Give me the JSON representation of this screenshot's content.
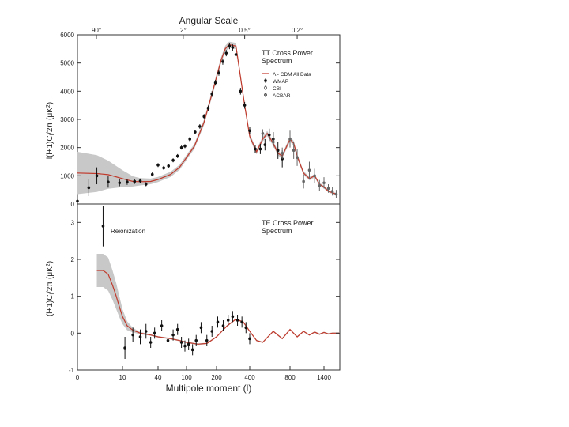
{
  "chart_data": [
    {
      "type": "line",
      "title": "TT Cross Power Spectrum",
      "title_lines": [
        "TT Cross Power",
        "Spectrum"
      ],
      "top_axis_title": "Angular Scale",
      "top_ticks": [
        "90°",
        "2°",
        "0.5°",
        "0.2°"
      ],
      "top_tick_l": [
        2,
        90,
        360,
        900
      ],
      "ylabel": "l(l+1)C_l/2π (μK²)",
      "ylim": [
        0,
        6000
      ],
      "yticks": [
        0,
        1000,
        2000,
        3000,
        4000,
        5000,
        6000
      ],
      "xlim_l": [
        2,
        1800
      ],
      "legend_position": "right, below title",
      "legend": [
        {
          "label": "Λ - CDM All Data",
          "marker": "line"
        },
        {
          "label": "WMAP",
          "marker": "filled-point"
        },
        {
          "label": "CBI",
          "marker": "open-point"
        },
        {
          "label": "ACBAR",
          "marker": "grey-point"
        }
      ],
      "model_band": {
        "l": [
          2,
          4,
          6,
          10,
          15,
          20,
          30,
          40,
          60,
          80,
          100,
          120,
          150,
          180,
          200,
          220,
          240,
          260,
          300,
          360,
          400,
          450,
          500,
          540,
          600,
          650,
          700,
          800,
          850,
          900,
          1000,
          1100,
          1200,
          1300,
          1400,
          1500,
          1700
        ],
        "value": [
          1100,
          1080,
          1040,
          900,
          800,
          790,
          800,
          870,
          1050,
          1300,
          1650,
          2050,
          2900,
          3900,
          4500,
          5100,
          5500,
          5650,
          5600,
          3500,
          2400,
          1850,
          2300,
          2500,
          2150,
          1800,
          1700,
          2300,
          2150,
          1700,
          1100,
          900,
          1000,
          700,
          600,
          450,
          350
        ],
        "band_halfwidth": [
          750,
          650,
          500,
          300,
          180,
          130,
          100,
          90,
          90,
          90,
          90,
          90,
          100,
          110,
          110,
          110,
          110,
          110,
          110,
          100,
          90,
          90,
          90,
          90,
          90,
          80,
          80,
          90,
          90,
          80,
          70,
          60,
          60,
          50,
          50,
          40,
          40
        ]
      },
      "series": [
        {
          "name": "WMAP",
          "l": [
            2,
            3,
            4,
            6,
            9,
            12,
            16,
            20,
            25,
            32,
            40,
            48,
            56,
            65,
            75,
            85,
            95,
            108,
            122,
            136,
            150,
            165,
            180,
            195,
            210,
            228,
            245,
            262,
            280,
            300,
            330,
            360,
            400,
            440,
            480,
            520,
            560,
            600,
            650,
            700
          ],
          "value": [
            100,
            580,
            1000,
            780,
            750,
            780,
            800,
            820,
            700,
            1050,
            1380,
            1280,
            1350,
            1550,
            1700,
            2000,
            2050,
            2300,
            2550,
            2750,
            3100,
            3400,
            3900,
            4300,
            4650,
            5050,
            5350,
            5600,
            5550,
            5300,
            4000,
            3500,
            2600,
            1950,
            1950,
            2100,
            2450,
            2300,
            1900,
            1600
          ],
          "err": [
            0,
            300,
            300,
            200,
            120,
            100,
            90,
            80,
            70,
            70,
            70,
            70,
            70,
            70,
            70,
            70,
            70,
            80,
            80,
            80,
            90,
            90,
            100,
            100,
            100,
            110,
            110,
            110,
            110,
            120,
            120,
            120,
            120,
            150,
            180,
            200,
            220,
            250,
            300,
            300
          ]
        },
        {
          "name": "CBI/ACBAR",
          "l": [
            500,
            600,
            700,
            800,
            850,
            900,
            1000,
            1100,
            1200,
            1300,
            1400,
            1500,
            1600,
            1700
          ],
          "value": [
            2500,
            2200,
            1800,
            2300,
            1900,
            1650,
            800,
            1200,
            1000,
            650,
            750,
            550,
            450,
            350
          ],
          "err": [
            150,
            200,
            200,
            300,
            300,
            300,
            250,
            300,
            250,
            200,
            200,
            150,
            150,
            150
          ]
        }
      ]
    },
    {
      "type": "line",
      "title": "TE Cross Power Spectrum",
      "title_lines": [
        "TE Cross Power",
        "Spectrum"
      ],
      "annotation": "Reionization",
      "ylabel": "(l+1)C_l/2π (μK²)",
      "xlabel": "Multipole moment (l)",
      "ylim": [
        -1,
        3.5
      ],
      "yticks": [
        -1,
        0,
        1,
        2,
        3
      ],
      "xticks": [
        "0",
        "10",
        "40",
        "100",
        "200",
        "400",
        "800",
        "1400"
      ],
      "xtick_l": [
        2,
        10,
        40,
        100,
        200,
        400,
        800,
        1400
      ],
      "xlim_l": [
        2,
        1800
      ],
      "model_band": {
        "l": [
          4,
          5,
          6,
          7,
          8,
          9,
          10,
          12,
          15,
          20,
          30,
          40,
          60,
          80,
          100,
          130,
          160,
          200,
          250,
          300,
          350,
          400,
          450,
          500,
          600,
          700,
          800,
          900,
          1000,
          1100,
          1200,
          1300,
          1400,
          1500,
          1600,
          1800
        ],
        "value": [
          1.7,
          1.7,
          1.6,
          1.3,
          1.0,
          0.7,
          0.45,
          0.2,
          0.08,
          0.0,
          -0.05,
          -0.1,
          -0.15,
          -0.2,
          -0.25,
          -0.3,
          -0.28,
          -0.1,
          0.2,
          0.38,
          0.3,
          0.05,
          -0.2,
          -0.25,
          0.05,
          -0.15,
          0.1,
          -0.1,
          0.05,
          -0.05,
          0.03,
          -0.03,
          0.02,
          -0.02,
          0.0,
          0.0
        ],
        "band_halfwidth": [
          0.45,
          0.45,
          0.45,
          0.4,
          0.35,
          0.28,
          0.2,
          0.12,
          0.06,
          0.03,
          0.02,
          0.02,
          0.02,
          0.02,
          0.02,
          0.02,
          0.02,
          0.02,
          0.02,
          0.02,
          0.02,
          0.02,
          0.02,
          0.02,
          0.02,
          0.02,
          0.02,
          0.02,
          0.02,
          0.02,
          0.02,
          0.02,
          0.02,
          0.02,
          0.02,
          0.02
        ]
      },
      "series": [
        {
          "name": "WMAP",
          "l": [
            5,
            11,
            15,
            20,
            25,
            30,
            35,
            45,
            55,
            65,
            75,
            85,
            95,
            105,
            115,
            125,
            140,
            160,
            180,
            205,
            230,
            255,
            280,
            310,
            340,
            370,
            400
          ],
          "value": [
            2.9,
            -0.4,
            -0.05,
            -0.1,
            0.05,
            -0.25,
            0.0,
            0.2,
            -0.2,
            -0.05,
            0.1,
            -0.25,
            -0.35,
            -0.3,
            -0.45,
            -0.2,
            0.15,
            -0.2,
            0.05,
            0.3,
            0.2,
            0.35,
            0.45,
            0.35,
            0.3,
            0.15,
            -0.15
          ],
          "err": [
            0.55,
            0.3,
            0.2,
            0.2,
            0.2,
            0.15,
            0.15,
            0.15,
            0.15,
            0.15,
            0.15,
            0.15,
            0.15,
            0.15,
            0.15,
            0.15,
            0.15,
            0.15,
            0.15,
            0.15,
            0.15,
            0.15,
            0.15,
            0.15,
            0.15,
            0.15,
            0.15
          ]
        }
      ]
    }
  ],
  "colors": {
    "model_line": "#c0392b",
    "band": "#c8c8c8",
    "points": "#111111",
    "axes": "#333333"
  }
}
